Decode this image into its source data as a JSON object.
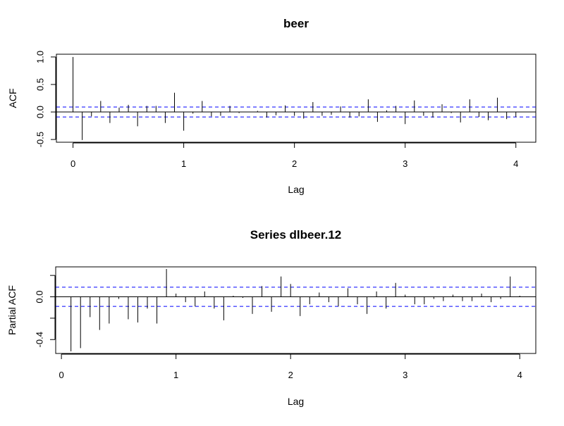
{
  "chart_data": [
    {
      "type": "bar",
      "title": "beer",
      "xlabel": "Lag",
      "ylabel": "ACF",
      "xlim": [
        0,
        4
      ],
      "ylim": [
        -0.55,
        1.05
      ],
      "x_ticks": [
        0,
        1,
        2,
        3,
        4
      ],
      "x_tick_labels": [
        "0",
        "1",
        "2",
        "3",
        "4"
      ],
      "y_ticks": [
        -0.5,
        0.0,
        0.5,
        1.0
      ],
      "y_tick_labels": [
        "-0.5",
        "0.0",
        "0.5",
        "1.0"
      ],
      "confidence_band": 0.09,
      "band_color": "#0000ff",
      "lags": [
        0,
        0.0833,
        0.1667,
        0.25,
        0.3333,
        0.4167,
        0.5,
        0.5833,
        0.6667,
        0.75,
        0.8333,
        0.9167,
        1.0,
        1.0833,
        1.1667,
        1.25,
        1.3333,
        1.4167,
        1.5,
        1.5833,
        1.6667,
        1.75,
        1.8333,
        1.9167,
        2.0,
        2.0833,
        2.1667,
        2.25,
        2.3333,
        2.4167,
        2.5,
        2.5833,
        2.6667,
        2.75,
        2.8333,
        2.9167,
        3.0,
        3.0833,
        3.1667,
        3.25,
        3.3333,
        3.4167,
        3.5,
        3.5833,
        3.6667,
        3.75,
        3.8333,
        3.9167,
        4.0
      ],
      "values": [
        1.0,
        -0.51,
        -0.08,
        0.2,
        -0.2,
        0.08,
        0.13,
        -0.26,
        0.11,
        0.11,
        -0.2,
        0.35,
        -0.34,
        -0.03,
        0.2,
        -0.08,
        -0.07,
        0.11,
        -0.02,
        0.0,
        0.02,
        -0.1,
        -0.06,
        0.12,
        -0.07,
        -0.12,
        0.18,
        -0.07,
        -0.05,
        0.1,
        -0.1,
        -0.08,
        0.23,
        -0.18,
        0.03,
        0.11,
        -0.22,
        0.21,
        -0.07,
        -0.1,
        0.14,
        -0.02,
        -0.19,
        0.23,
        -0.09,
        -0.15,
        0.26,
        -0.13,
        -0.09
      ]
    },
    {
      "type": "bar",
      "title": "Series  dlbeer.12",
      "xlabel": "Lag",
      "ylabel": "Partial ACF",
      "xlim": [
        0,
        4
      ],
      "ylim": [
        -0.53,
        0.28
      ],
      "x_ticks": [
        0,
        1,
        2,
        3,
        4
      ],
      "x_tick_labels": [
        "0",
        "1",
        "2",
        "3",
        "4"
      ],
      "y_ticks": [
        -0.4,
        -0.2,
        0.0,
        0.2
      ],
      "y_tick_labels": [
        "-0.4",
        "",
        "0.0",
        ""
      ],
      "confidence_band": 0.09,
      "band_color": "#0000ff",
      "lags": [
        0.0833,
        0.1667,
        0.25,
        0.3333,
        0.4167,
        0.5,
        0.5833,
        0.6667,
        0.75,
        0.8333,
        0.9167,
        1.0,
        1.0833,
        1.1667,
        1.25,
        1.3333,
        1.4167,
        1.5,
        1.5833,
        1.6667,
        1.75,
        1.8333,
        1.9167,
        2.0,
        2.0833,
        2.1667,
        2.25,
        2.3333,
        2.4167,
        2.5,
        2.5833,
        2.6667,
        2.75,
        2.8333,
        2.9167,
        3.0,
        3.0833,
        3.1667,
        3.25,
        3.3333,
        3.4167,
        3.5,
        3.5833,
        3.6667,
        3.75,
        3.8333,
        3.9167,
        4.0
      ],
      "values": [
        -0.51,
        -0.48,
        -0.19,
        -0.31,
        -0.25,
        -0.02,
        -0.21,
        -0.24,
        -0.11,
        -0.25,
        0.26,
        0.03,
        -0.05,
        -0.09,
        0.05,
        -0.11,
        -0.22,
        0.01,
        -0.01,
        -0.16,
        0.1,
        -0.14,
        0.19,
        0.12,
        -0.18,
        -0.07,
        0.04,
        -0.05,
        -0.09,
        0.08,
        -0.07,
        -0.16,
        0.05,
        -0.11,
        0.13,
        0.02,
        -0.07,
        -0.07,
        -0.02,
        -0.04,
        0.02,
        -0.04,
        -0.04,
        0.03,
        -0.05,
        -0.02,
        0.19,
        0.01
      ]
    }
  ]
}
